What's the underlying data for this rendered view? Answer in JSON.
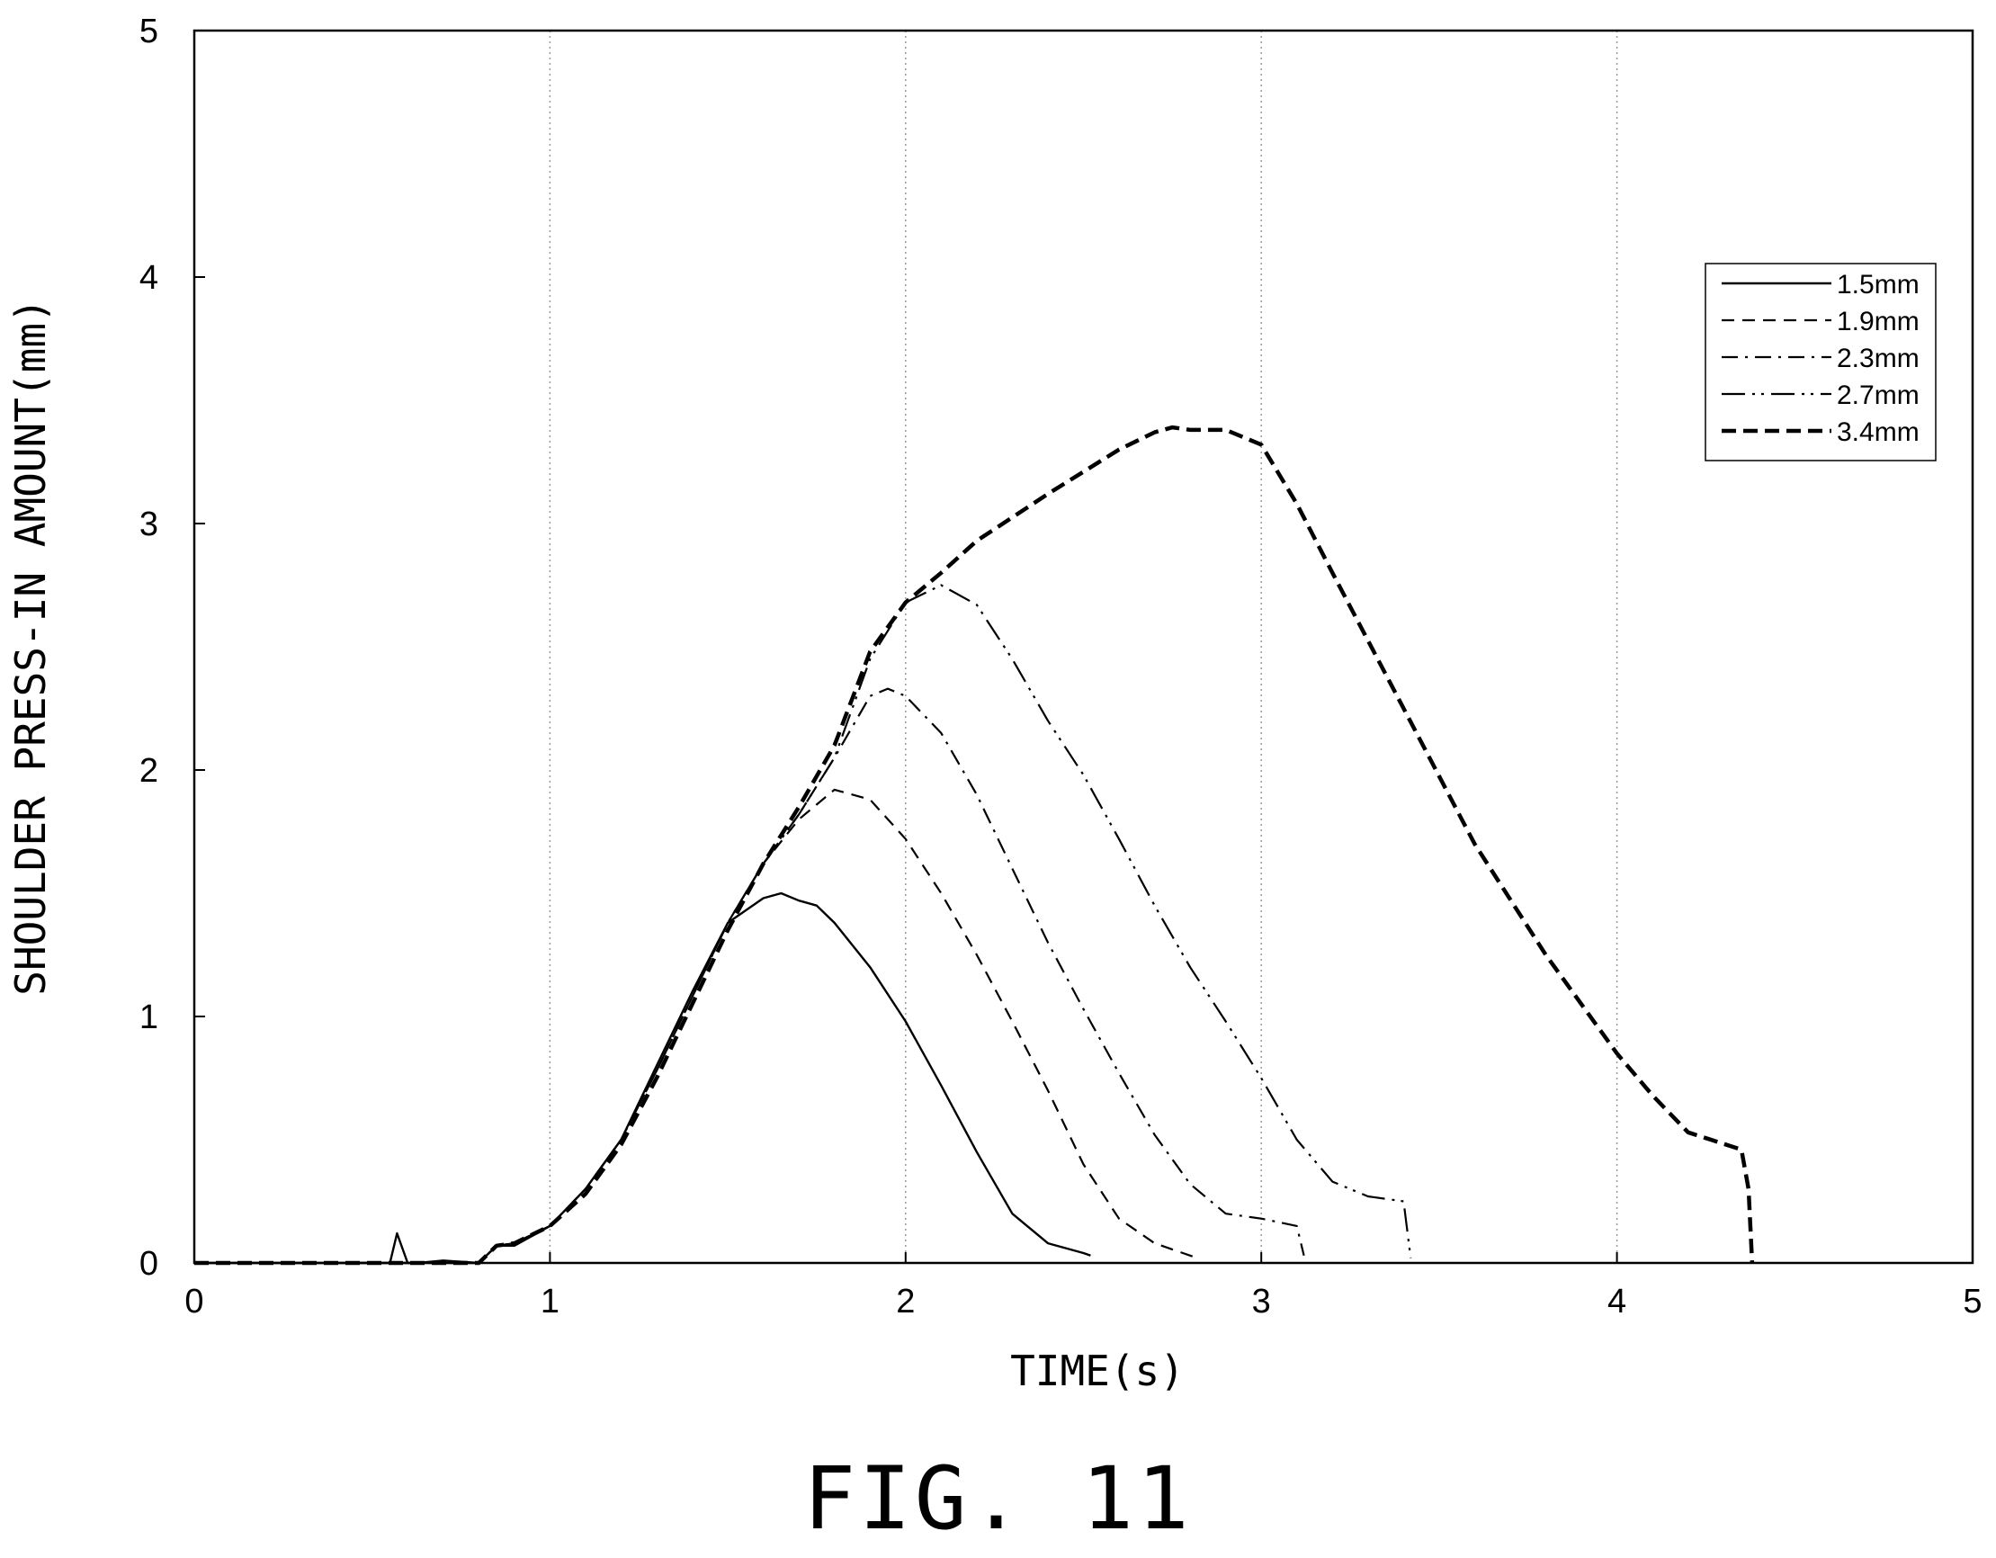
{
  "figure_label": "FIG. 11",
  "chart_data": {
    "type": "line",
    "xlabel": "TIME(s)",
    "ylabel": "SHOULDER PRESS-IN AMOUNT(mm)",
    "xlim": [
      0,
      5
    ],
    "ylim": [
      0,
      5
    ],
    "xticks": [
      0,
      1,
      2,
      3,
      4,
      5
    ],
    "yticks": [
      0,
      1,
      2,
      3,
      4,
      5
    ],
    "grid": "vertical dotted at x = 1, 2, 3, 4",
    "legend_position": "top-right",
    "series": [
      {
        "name": "1.5mm",
        "style": "solid",
        "x": [
          0,
          0.55,
          0.57,
          0.6,
          0.63,
          0.7,
          0.8,
          0.85,
          0.9,
          1.0,
          1.1,
          1.2,
          1.3,
          1.4,
          1.5,
          1.6,
          1.65,
          1.7,
          1.75,
          1.8,
          1.9,
          2.0,
          2.1,
          2.2,
          2.3,
          2.4,
          2.5,
          2.52
        ],
        "y": [
          0,
          0,
          0.12,
          0,
          0,
          0.01,
          0,
          0.07,
          0.07,
          0.15,
          0.3,
          0.5,
          0.8,
          1.1,
          1.38,
          1.48,
          1.5,
          1.47,
          1.45,
          1.38,
          1.2,
          0.98,
          0.72,
          0.45,
          0.2,
          0.08,
          0.04,
          0.03
        ]
      },
      {
        "name": "1.9mm",
        "style": "dashed",
        "x": [
          0,
          0.8,
          0.85,
          0.9,
          1.0,
          1.1,
          1.2,
          1.3,
          1.4,
          1.5,
          1.6,
          1.7,
          1.8,
          1.9,
          2.0,
          2.1,
          2.2,
          2.3,
          2.4,
          2.5,
          2.6,
          2.7,
          2.8,
          2.82
        ],
        "y": [
          0,
          0,
          0.07,
          0.08,
          0.15,
          0.3,
          0.5,
          0.78,
          1.08,
          1.38,
          1.62,
          1.8,
          1.92,
          1.88,
          1.72,
          1.5,
          1.25,
          0.98,
          0.7,
          0.4,
          0.18,
          0.08,
          0.03,
          0.02
        ]
      },
      {
        "name": "2.3mm",
        "style": "dash-dot",
        "x": [
          0,
          0.8,
          0.85,
          0.9,
          1.0,
          1.1,
          1.2,
          1.3,
          1.4,
          1.5,
          1.6,
          1.7,
          1.8,
          1.9,
          1.95,
          2.0,
          2.1,
          2.2,
          2.3,
          2.4,
          2.5,
          2.6,
          2.7,
          2.8,
          2.9,
          3.0,
          3.1,
          3.12
        ],
        "y": [
          0,
          0,
          0.07,
          0.08,
          0.15,
          0.3,
          0.5,
          0.78,
          1.08,
          1.38,
          1.62,
          1.82,
          2.05,
          2.3,
          2.33,
          2.3,
          2.15,
          1.9,
          1.6,
          1.3,
          1.03,
          0.77,
          0.52,
          0.32,
          0.2,
          0.18,
          0.15,
          0.03
        ]
      },
      {
        "name": "2.7mm",
        "style": "dash-dot-dot",
        "x": [
          0,
          0.8,
          0.85,
          0.9,
          1.0,
          1.1,
          1.2,
          1.3,
          1.4,
          1.5,
          1.6,
          1.7,
          1.8,
          1.9,
          2.0,
          2.1,
          2.2,
          2.3,
          2.4,
          2.5,
          2.6,
          2.7,
          2.8,
          2.9,
          3.0,
          3.1,
          3.2,
          3.3,
          3.4,
          3.42
        ],
        "y": [
          0,
          0,
          0.07,
          0.08,
          0.15,
          0.3,
          0.5,
          0.78,
          1.08,
          1.38,
          1.62,
          1.82,
          2.05,
          2.45,
          2.68,
          2.75,
          2.67,
          2.45,
          2.2,
          1.98,
          1.72,
          1.45,
          1.2,
          0.98,
          0.75,
          0.5,
          0.33,
          0.27,
          0.25,
          0.02
        ]
      },
      {
        "name": "3.4mm",
        "style": "bold-dashed",
        "x": [
          0,
          0.8,
          0.85,
          0.9,
          1.0,
          1.1,
          1.2,
          1.3,
          1.4,
          1.5,
          1.6,
          1.7,
          1.8,
          1.9,
          2.0,
          2.1,
          2.2,
          2.4,
          2.6,
          2.7,
          2.75,
          2.8,
          2.9,
          3.0,
          3.1,
          3.2,
          3.4,
          3.6,
          3.8,
          4.0,
          4.1,
          4.2,
          4.35,
          4.37,
          4.38
        ],
        "y": [
          0,
          0,
          0.07,
          0.08,
          0.15,
          0.28,
          0.48,
          0.75,
          1.05,
          1.35,
          1.62,
          1.85,
          2.1,
          2.48,
          2.68,
          2.8,
          2.93,
          3.12,
          3.3,
          3.37,
          3.39,
          3.38,
          3.38,
          3.32,
          3.08,
          2.8,
          2.25,
          1.7,
          1.25,
          0.85,
          0.68,
          0.53,
          0.46,
          0.3,
          0.0
        ]
      }
    ]
  }
}
